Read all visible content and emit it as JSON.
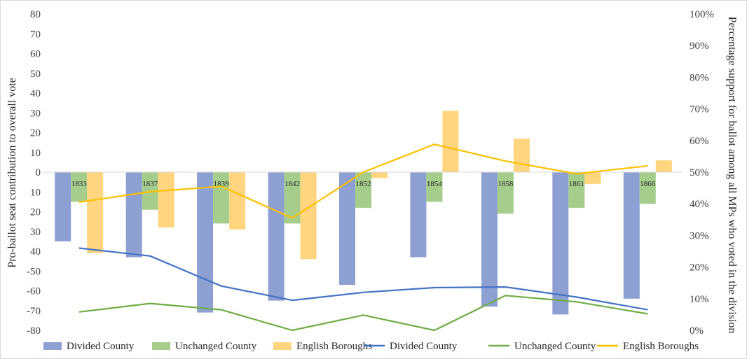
{
  "chart_data": {
    "type": "bar+line",
    "title": "",
    "categories": [
      "1833",
      "1837",
      "1839",
      "1842",
      "1852",
      "1854",
      "1858",
      "1861",
      "1866"
    ],
    "y_left": {
      "label": "Pro-ballot seat contribution to overall vote",
      "range": [
        -80,
        80
      ],
      "step": 10,
      "tick_labels": [
        "80",
        "70",
        "60",
        "50",
        "40",
        "30",
        "20",
        "10",
        "0",
        "10",
        "20",
        "30",
        "40",
        "-50",
        "-60",
        "-70",
        "-80"
      ]
    },
    "y_right": {
      "label": "Percentage support for ballot among all MPs who voted in the division",
      "range": [
        0,
        100
      ],
      "step": 10,
      "tick_labels": [
        "100%",
        "90%",
        "80%",
        "70%",
        "60%",
        "50%",
        "40%",
        "30%",
        "20%",
        "10%",
        "0%"
      ]
    },
    "bar_series": [
      {
        "name": "Divided County",
        "color": "#8e9fd2",
        "values": [
          -35,
          -43,
          -71,
          -65,
          -57,
          -43,
          -68,
          -72,
          -64
        ]
      },
      {
        "name": "Unchanged County",
        "color": "#a6cd8b",
        "values": [
          -15,
          -19,
          -26,
          -26,
          -18,
          -15,
          -21,
          -18,
          -16
        ]
      },
      {
        "name": "English Boroughs",
        "color": "#ffd57f",
        "values": [
          -41,
          -28,
          -29,
          -44,
          -3,
          31,
          17,
          -6,
          6
        ]
      }
    ],
    "line_series": [
      {
        "name": "Divided County",
        "color": "#4472c4",
        "values": [
          26,
          23.5,
          14,
          9.5,
          12,
          13.5,
          13.7,
          10.5,
          6.5
        ]
      },
      {
        "name": "Unchanged County",
        "color": "#70ad47",
        "values": [
          5.8,
          8.5,
          6.5,
          0,
          4.8,
          0,
          11,
          9,
          5.2
        ]
      },
      {
        "name": "English Boroughs",
        "color": "#ffc000",
        "values": [
          40.5,
          43.8,
          45.5,
          35.5,
          50,
          58.8,
          53.5,
          49.5,
          52
        ]
      }
    ],
    "grid": false,
    "legend_position": "bottom"
  }
}
